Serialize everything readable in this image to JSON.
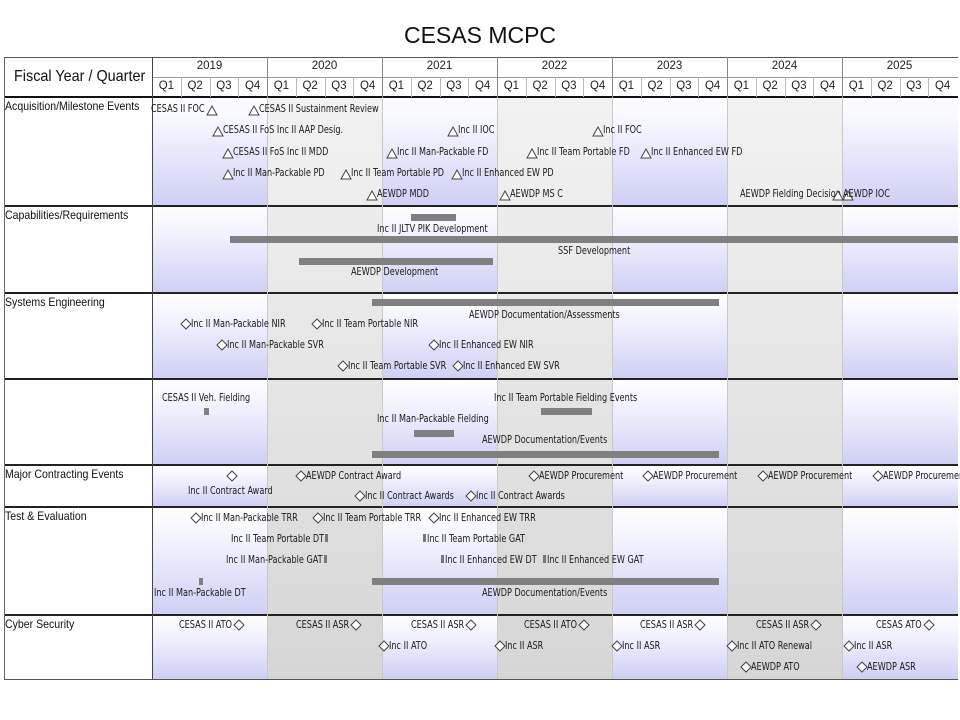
{
  "title": "CESAS MCPC",
  "header_label": "Fiscal Year / Quarter",
  "years": [
    "2019",
    "2020",
    "2021",
    "2022",
    "2023",
    "2024",
    "2025"
  ],
  "quarters": [
    "Q1",
    "Q2",
    "Q3",
    "Q4"
  ],
  "rows": [
    {
      "name": "Acquisition/Milestone Events"
    },
    {
      "name": "Capabilities/Requirements"
    },
    {
      "name": "Systems Engineering"
    },
    {
      "name": ""
    },
    {
      "name": "Major Contracting Events"
    },
    {
      "name": "Test & Evaluation"
    },
    {
      "name": "Cyber Security"
    }
  ],
  "colors": {
    "shade_gray": "#e2e2e2",
    "band_blue_light": "#f3f3ff",
    "band_blue": "#cfcff5",
    "bar": "#808080",
    "grid": "#000000"
  },
  "events": [
    {
      "row": 0,
      "text": "CESAS II FOC",
      "sym": "triangle",
      "side": "left"
    },
    {
      "row": 0,
      "text": "CESAS II Sustainment Review",
      "sym": "triangle",
      "side": "right"
    },
    {
      "row": 0,
      "text": "CESAS II FoS Inc II AAP Desig.",
      "sym": "triangle",
      "side": "right"
    },
    {
      "row": 0,
      "text": "Inc II IOC",
      "sym": "triangle",
      "side": "right"
    },
    {
      "row": 0,
      "text": "Inc II FOC",
      "sym": "triangle",
      "side": "right"
    },
    {
      "row": 0,
      "text": "CESAS II FoS Inc II MDD",
      "sym": "triangle",
      "side": "right"
    },
    {
      "row": 0,
      "text": "Inc II Man-Packable FD",
      "sym": "triangle",
      "side": "right"
    },
    {
      "row": 0,
      "text": "Inc II Team Portable FD",
      "sym": "triangle",
      "side": "right"
    },
    {
      "row": 0,
      "text": "Inc II Enhanced EW FD",
      "sym": "triangle",
      "side": "right"
    },
    {
      "row": 0,
      "text": "Inc II Man-Packable PD",
      "sym": "triangle",
      "side": "right"
    },
    {
      "row": 0,
      "text": "Inc II Team Portable PD",
      "sym": "triangle",
      "side": "right"
    },
    {
      "row": 0,
      "text": "Inc II Enhanced EW PD",
      "sym": "triangle",
      "side": "right"
    },
    {
      "row": 0,
      "text": "AEWDP MDD",
      "sym": "triangle",
      "side": "right"
    },
    {
      "row": 0,
      "text": "AEWDP MS C",
      "sym": "triangle",
      "side": "right"
    },
    {
      "row": 0,
      "text": "AEWDP Fielding Decision",
      "sym": "triangle",
      "side": "left"
    },
    {
      "row": 0,
      "text": "AEWDP IOC",
      "sym": "triangle",
      "side": "right"
    },
    {
      "row": 1,
      "text": "Inc II JLTV PIK Development",
      "sym": "none"
    },
    {
      "row": 1,
      "text": "SSF Development",
      "sym": "none"
    },
    {
      "row": 1,
      "text": "AEWDP Development",
      "sym": "none"
    },
    {
      "row": 2,
      "text": "AEWDP Documentation/Assessments",
      "sym": "none"
    },
    {
      "row": 2,
      "text": "Inc II Man-Packable NIR",
      "sym": "diamond",
      "side": "right"
    },
    {
      "row": 2,
      "text": "Inc II Team Portable NIR",
      "sym": "diamond",
      "side": "right"
    },
    {
      "row": 2,
      "text": "Inc II Man-Packable SVR",
      "sym": "diamond",
      "side": "right"
    },
    {
      "row": 2,
      "text": "Inc II Enhanced EW NIR",
      "sym": "diamond",
      "side": "right"
    },
    {
      "row": 2,
      "text": "Inc II Team Portable SVR",
      "sym": "diamond",
      "side": "right"
    },
    {
      "row": 2,
      "text": "Inc II Enhanced EW SVR",
      "sym": "diamond",
      "side": "right"
    },
    {
      "row": 3,
      "text": "CESAS II Veh. Fielding",
      "sym": "none"
    },
    {
      "row": 3,
      "text": "Inc II Team Portable Fielding Events",
      "sym": "none"
    },
    {
      "row": 3,
      "text": "Inc II Man-Packable Fielding",
      "sym": "none"
    },
    {
      "row": 3,
      "text": "AEWDP Documentation/Events",
      "sym": "none"
    },
    {
      "row": 4,
      "text": "AEWDP Contract Award",
      "sym": "diamond",
      "side": "right"
    },
    {
      "row": 4,
      "text": "AEWDP Procurement",
      "sym": "diamond",
      "side": "right"
    },
    {
      "row": 4,
      "text": "AEWDP Procurement",
      "sym": "diamond",
      "side": "right"
    },
    {
      "row": 4,
      "text": "AEWDP Procurement",
      "sym": "diamond",
      "side": "right"
    },
    {
      "row": 4,
      "text": "AEWDP Procurement",
      "sym": "diamond",
      "side": "right"
    },
    {
      "row": 4,
      "text": "Inc II Contract Award",
      "sym": "diamond",
      "side": "above"
    },
    {
      "row": 4,
      "text": "Inc II Contract Awards",
      "sym": "diamond",
      "side": "right"
    },
    {
      "row": 4,
      "text": "Inc II Contract Awards",
      "sym": "diamond",
      "side": "right"
    },
    {
      "row": 5,
      "text": "Inc II Man-Packable TRR",
      "sym": "diamond",
      "side": "right"
    },
    {
      "row": 5,
      "text": "Inc II Team Portable TRR",
      "sym": "diamond",
      "side": "right"
    },
    {
      "row": 5,
      "text": "Inc II Enhanced EW TRR",
      "sym": "diamond",
      "side": "right"
    },
    {
      "row": 5,
      "text": "Inc II Team Portable DT",
      "sym": "tick",
      "side": "left"
    },
    {
      "row": 5,
      "text": "Inc II Team Portable GAT",
      "sym": "tick",
      "side": "right"
    },
    {
      "row": 5,
      "text": "Inc II Man-Packable GAT",
      "sym": "tick",
      "side": "left"
    },
    {
      "row": 5,
      "text": "Inc II Enhanced EW DT",
      "sym": "tick",
      "side": "right"
    },
    {
      "row": 5,
      "text": "Inc II Enhanced EW GAT",
      "sym": "tick",
      "side": "right"
    },
    {
      "row": 5,
      "text": "Inc II Man-Packable DT",
      "sym": "tick",
      "side": "below"
    },
    {
      "row": 5,
      "text": "AEWDP Documentation/Events",
      "sym": "none"
    },
    {
      "row": 6,
      "text": "CESAS II ATO",
      "sym": "diamond",
      "side": "left"
    },
    {
      "row": 6,
      "text": "CESAS II ASR",
      "sym": "diamond",
      "side": "left"
    },
    {
      "row": 6,
      "text": "CESAS II ASR",
      "sym": "diamond",
      "side": "left"
    },
    {
      "row": 6,
      "text": "CESAS II ATO",
      "sym": "diamond",
      "side": "left"
    },
    {
      "row": 6,
      "text": "CESAS II ASR",
      "sym": "diamond",
      "side": "left"
    },
    {
      "row": 6,
      "text": "CESAS II ASR",
      "sym": "diamond",
      "side": "left"
    },
    {
      "row": 6,
      "text": "CESAS ATO",
      "sym": "diamond",
      "side": "left"
    },
    {
      "row": 6,
      "text": "Inc II ATO",
      "sym": "diamond",
      "side": "right"
    },
    {
      "row": 6,
      "text": "Inc II ASR",
      "sym": "diamond",
      "side": "right"
    },
    {
      "row": 6,
      "text": "Inc II ASR",
      "sym": "diamond",
      "side": "right"
    },
    {
      "row": 6,
      "text": "Inc II ATO Renewal",
      "sym": "diamond",
      "side": "right"
    },
    {
      "row": 6,
      "text": "Inc II ASR",
      "sym": "diamond",
      "side": "right"
    },
    {
      "row": 6,
      "text": "AEWDP ATO",
      "sym": "diamond",
      "side": "right"
    },
    {
      "row": 6,
      "text": "AEWDP ASR",
      "sym": "diamond",
      "side": "right"
    }
  ],
  "bars": [
    {
      "row": 1,
      "label": "Inc II JLTV PIK Development"
    },
    {
      "row": 1,
      "label": "SSF Development"
    },
    {
      "row": 1,
      "label": "AEWDP Development"
    },
    {
      "row": 2,
      "label": "AEWDP Documentation/Assessments"
    },
    {
      "row": 3,
      "label": "CESAS II Veh. Fielding"
    },
    {
      "row": 3,
      "label": "Inc II Team Portable Fielding Events"
    },
    {
      "row": 3,
      "label": "Inc II Man-Packable Fielding"
    },
    {
      "row": 3,
      "label": "AEWDP Documentation/Events"
    },
    {
      "row": 5,
      "label": "Inc II Man-Packable DT"
    },
    {
      "row": 5,
      "label": "AEWDP Documentation/Events"
    }
  ]
}
